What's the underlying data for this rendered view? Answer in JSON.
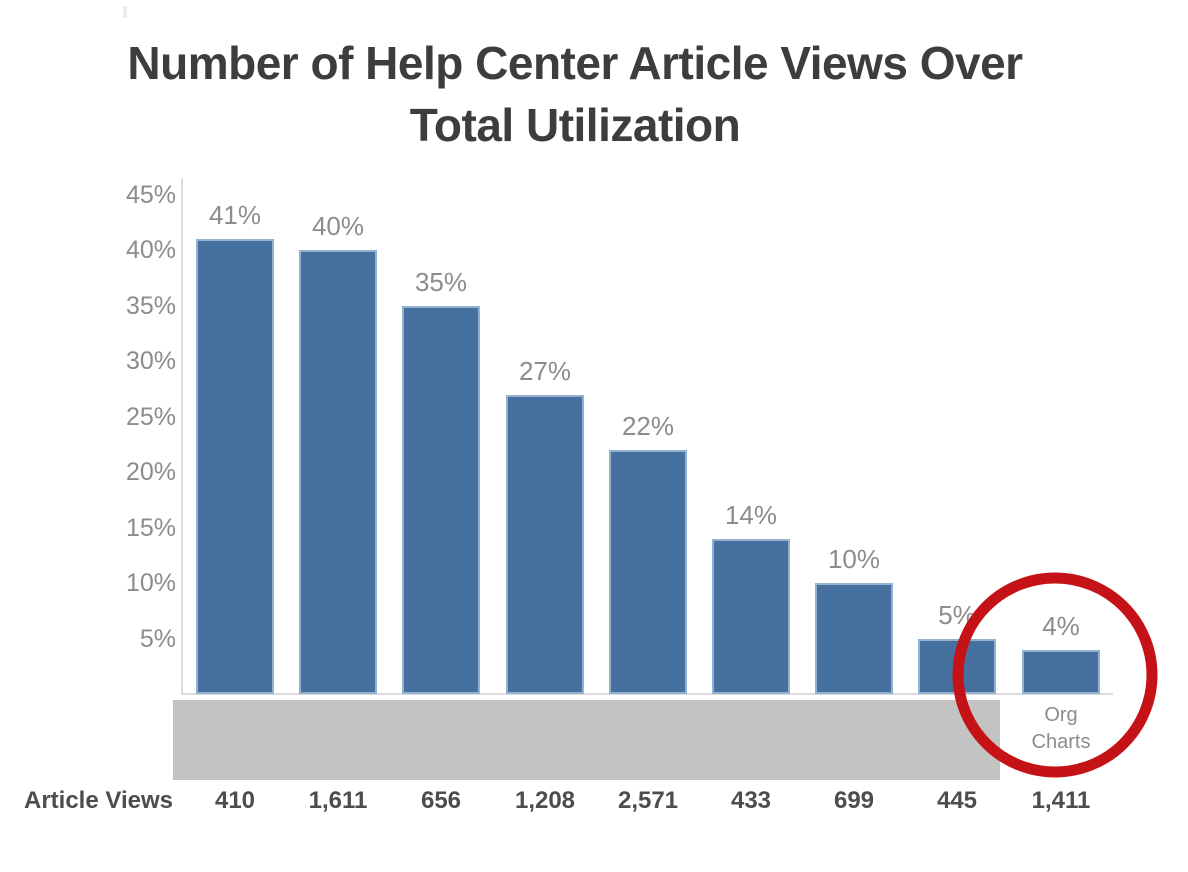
{
  "chart_data": {
    "type": "bar",
    "title": "Number of Help Center Article Views Over Total Utilization",
    "title_lines": [
      "Number of Help Center Article Views Over",
      "Total Utilization"
    ],
    "xlabel": "",
    "ylabel": "",
    "ylim": [
      0,
      47
    ],
    "grid": false,
    "legend": false,
    "ytick_values": [
      5,
      10,
      15,
      20,
      25,
      30,
      35,
      40,
      45
    ],
    "ytick_labels": [
      "5%",
      "10%",
      "15%",
      "20%",
      "25%",
      "30%",
      "35%",
      "40%",
      "45%"
    ],
    "bars": [
      {
        "value_pct": 41,
        "value_label": "41%",
        "article_views": "410",
        "category_lines": []
      },
      {
        "value_pct": 40,
        "value_label": "40%",
        "article_views": "1,611",
        "category_lines": []
      },
      {
        "value_pct": 35,
        "value_label": "35%",
        "article_views": "656",
        "category_lines": []
      },
      {
        "value_pct": 27,
        "value_label": "27%",
        "article_views": "1,208",
        "category_lines": []
      },
      {
        "value_pct": 22,
        "value_label": "22%",
        "article_views": "2,571",
        "category_lines": []
      },
      {
        "value_pct": 14,
        "value_label": "14%",
        "article_views": "433",
        "category_lines": []
      },
      {
        "value_pct": 10,
        "value_label": "10%",
        "article_views": "699",
        "category_lines": []
      },
      {
        "value_pct": 5,
        "value_label": "5%",
        "article_views": "445",
        "category_lines": []
      },
      {
        "value_pct": 4,
        "value_label": "4%",
        "article_views": "1,411",
        "category_lines": [
          "Org",
          "Charts"
        ]
      }
    ],
    "views_row_label": "Article Views",
    "annotations": {
      "redaction_box": {
        "description": "gray box hiding category labels of bars 1-8",
        "color": "#c3c3c3"
      },
      "highlight_circle": {
        "description": "red circle around Org Charts bar",
        "color": "#c41216"
      }
    },
    "colors": {
      "bar_fill": "#46709d",
      "bar_border": "#94b2cf",
      "axis_line": "#dcdcdc",
      "label_gray": "#8c8c8c",
      "title_color": "#3d3d3d",
      "views_text": "#4d4d4d"
    }
  }
}
